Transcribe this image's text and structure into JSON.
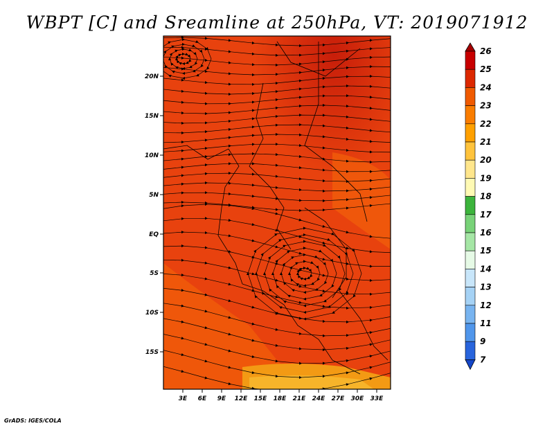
{
  "title": "WBPT [C] and Sreamline at 250hPa, VT: 2019071912",
  "credit": "GrADS: IGES/COLA",
  "map": {
    "lat_ticks": [
      "20N",
      "15N",
      "10N",
      "5N",
      "EQ",
      "5S",
      "10S",
      "15S"
    ],
    "lon_ticks": [
      "3E",
      "6E",
      "9E",
      "12E",
      "15E",
      "18E",
      "21E",
      "24E",
      "27E",
      "30E",
      "33E"
    ],
    "lon_range": [
      0,
      34.5
    ],
    "lat_range": [
      -20,
      24
    ],
    "dominant_field_color": "#e8420e"
  },
  "colorbar": {
    "levels": [
      "26",
      "25",
      "24",
      "23",
      "22",
      "21",
      "20",
      "19",
      "18",
      "17",
      "16",
      "15",
      "14",
      "13",
      "12",
      "11",
      "9",
      "7"
    ],
    "colors": [
      "#a50000",
      "#c80000",
      "#dc2800",
      "#f05a00",
      "#fa7d00",
      "#ffa000",
      "#ffc33c",
      "#ffe68c",
      "#fffab4",
      "#3cb43c",
      "#78d278",
      "#a5e6a5",
      "#e6fae6",
      "#c8e6fa",
      "#a5d2f5",
      "#78b4f0",
      "#5096eb",
      "#2864dc",
      "#1446c8"
    ]
  }
}
